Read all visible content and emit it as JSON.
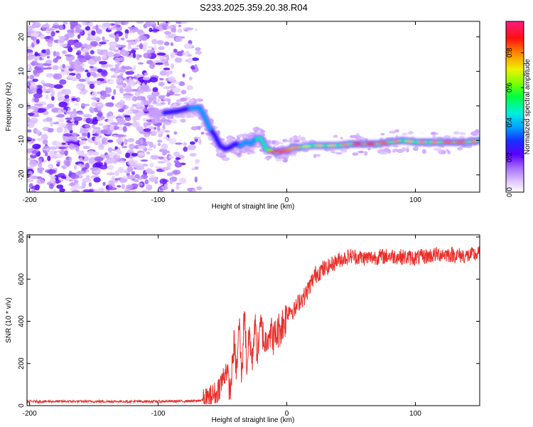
{
  "title": "S233.2025.359.20.38.R04",
  "chart_data": [
    {
      "type": "heatmap",
      "name": "spectrogram",
      "xlabel": "Height of straight line (km)",
      "ylabel": "Frequency (Hz)",
      "xlim": [
        -202,
        150
      ],
      "ylim": [
        -25,
        24.5
      ],
      "xticks": [
        -200,
        -100,
        0,
        100
      ],
      "yticks": [
        -20,
        -10,
        0,
        10,
        20
      ],
      "colorbar": {
        "label": "Normalized spectral amplitude",
        "range": [
          0,
          0.98
        ],
        "ticks": [
          0,
          0.2,
          0.4,
          0.6,
          0.8
        ],
        "tick_labels": [
          "0.0",
          "0.2",
          "0.4",
          "0.6",
          "0.8"
        ]
      },
      "signal_track": {
        "x": [
          -105,
          -95,
          -85,
          -75,
          -68,
          -64,
          -60,
          -56,
          -52,
          -48,
          -44,
          -40,
          -36,
          -32,
          -28,
          -24,
          -20,
          -16,
          -12,
          -8,
          -4,
          0,
          5,
          10,
          20,
          30,
          40,
          50,
          60,
          70,
          80,
          90,
          100,
          110,
          120,
          130,
          140,
          150
        ],
        "frequency": [
          -2.5,
          -2,
          -1.5,
          -0.6,
          -0.5,
          -3,
          -6.5,
          -8.5,
          -11.5,
          -12.5,
          -12,
          -11,
          -11.5,
          -10.5,
          -11,
          -9.5,
          -9.5,
          -12.5,
          -13,
          -13.5,
          -13,
          -13,
          -12,
          -12,
          -11.5,
          -11.5,
          -11.5,
          -11,
          -11,
          -11,
          -10.5,
          -10,
          -10.5,
          -10.5,
          -10.5,
          -10.5,
          -10.5,
          -10
        ],
        "amplitude": [
          0.25,
          0.3,
          0.35,
          0.45,
          0.55,
          0.45,
          0.4,
          0.35,
          0.3,
          0.3,
          0.3,
          0.35,
          0.4,
          0.4,
          0.45,
          0.5,
          0.55,
          0.6,
          0.85,
          0.9,
          0.85,
          0.8,
          0.8,
          0.7,
          0.75,
          0.75,
          0.8,
          0.9,
          0.9,
          0.85,
          0.8,
          0.75,
          0.8,
          0.8,
          0.85,
          0.85,
          0.8,
          0.7
        ]
      },
      "noise_region_x": [
        -202,
        -65
      ]
    },
    {
      "type": "line",
      "name": "snr",
      "xlabel": "Height of straight line (km)",
      "ylabel": "SNR (10 * v/v)",
      "xlim": [
        -202,
        150
      ],
      "ylim": [
        0,
        810
      ],
      "xticks": [
        -200,
        -100,
        0,
        100
      ],
      "yticks": [
        0,
        200,
        400,
        600,
        800
      ],
      "color": "#e8302a",
      "series": [
        {
          "name": "SNR",
          "x": [
            -202,
            -150,
            -100,
            -70,
            -62,
            -55,
            -50,
            -47,
            -44,
            -41,
            -39,
            -37,
            -35,
            -33,
            -31,
            -29,
            -27,
            -25,
            -23,
            -20,
            -17,
            -14,
            -10,
            -6,
            -2,
            2,
            6,
            10,
            14,
            18,
            22,
            26,
            30,
            35,
            40,
            50,
            60,
            80,
            100,
            120,
            140,
            150
          ],
          "y": [
            20,
            20,
            20,
            22,
            30,
            60,
            120,
            180,
            60,
            300,
            150,
            400,
            120,
            470,
            180,
            350,
            200,
            400,
            250,
            380,
            290,
            360,
            320,
            360,
            400,
            460,
            450,
            500,
            520,
            570,
            620,
            640,
            650,
            670,
            690,
            710,
            700,
            710,
            700,
            720,
            710,
            720
          ]
        }
      ]
    }
  ]
}
